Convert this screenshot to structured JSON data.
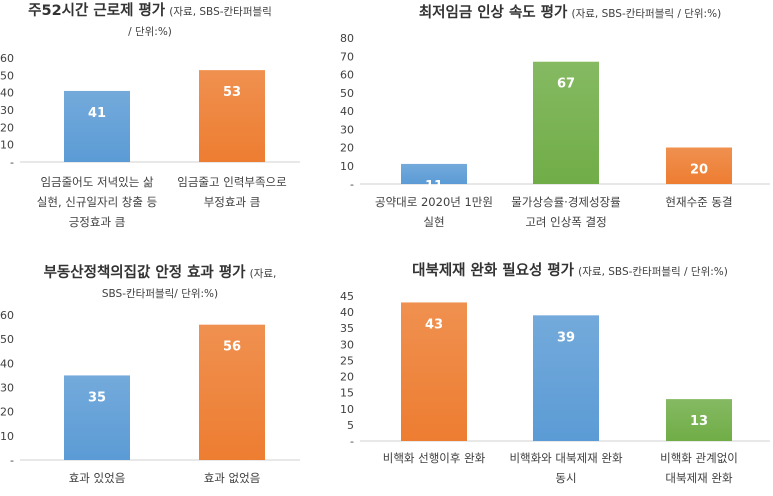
{
  "chart_data": [
    {
      "type": "bar",
      "title": "주52시간 근로제 평가",
      "subtitle_a": "(자료, SBS-칸타퍼블릭",
      "subtitle_b": "/ 단위:%)",
      "categories": [
        [
          "임금줄어도 저녁있는 삶",
          "실현, 신규일자리 창출 등",
          "긍정효과 큼"
        ],
        [
          "임금줄고 인력부족으로",
          "부정효과 큼"
        ]
      ],
      "values": [
        41,
        53
      ],
      "colors": [
        "#5b9bd5",
        "#ed7d31"
      ],
      "yticks": [
        "-",
        "10",
        "20",
        "30",
        "40",
        "50",
        "60"
      ],
      "ylim": [
        0,
        60
      ],
      "grid": false,
      "legend": "none"
    },
    {
      "type": "bar",
      "title": "최저임금 인상 속도 평가",
      "subtitle_a": "(자료, SBS-칸타퍼블릭 / 단위:%)",
      "subtitle_b": "",
      "categories": [
        [
          "공약대로 2020년 1만원",
          "실현"
        ],
        [
          "물가상승률·경제성장률",
          "고려 인상폭 결정"
        ],
        [
          "현재수준 동결"
        ]
      ],
      "values": [
        11,
        67,
        20
      ],
      "colors": [
        "#5b9bd5",
        "#70ad47",
        "#ed7d31"
      ],
      "yticks": [
        "-",
        "10",
        "20",
        "30",
        "40",
        "50",
        "60",
        "70",
        "80"
      ],
      "ylim": [
        0,
        80
      ],
      "grid": false,
      "legend": "none"
    },
    {
      "type": "bar",
      "title": "부동산정책의집값 안정 효과 평가",
      "subtitle_a": "(자료,",
      "subtitle_b": "SBS-칸타퍼블릭/ 단위:%)",
      "categories": [
        [
          "효과 있었음"
        ],
        [
          "효과 없었음"
        ]
      ],
      "values": [
        35,
        56
      ],
      "colors": [
        "#5b9bd5",
        "#ed7d31"
      ],
      "yticks": [
        "-",
        "10",
        "20",
        "30",
        "40",
        "50",
        "60"
      ],
      "ylim": [
        0,
        60
      ],
      "grid": false,
      "legend": "none"
    },
    {
      "type": "bar",
      "title": "대북제재 완화 필요성 평가",
      "subtitle_a": "(자료, SBS-칸타퍼블릭 / 단위:%)",
      "subtitle_b": "",
      "categories": [
        [
          "비핵화 선행이후 완화"
        ],
        [
          "비핵화와 대북제재 완화",
          "동시"
        ],
        [
          "비핵화 관계없이",
          "대북제재 완화"
        ]
      ],
      "values": [
        43,
        39,
        13
      ],
      "colors": [
        "#ed7d31",
        "#5b9bd5",
        "#70ad47"
      ],
      "yticks": [
        "-",
        "5",
        "10",
        "15",
        "20",
        "25",
        "30",
        "35",
        "40",
        "45"
      ],
      "ylim": [
        0,
        45
      ],
      "grid": false,
      "legend": "none"
    }
  ]
}
